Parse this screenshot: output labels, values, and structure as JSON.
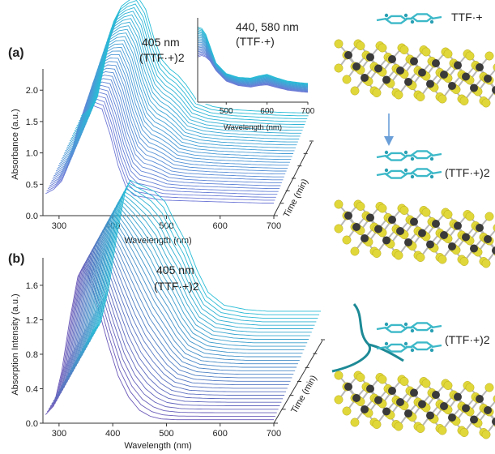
{
  "figure": {
    "panel_a_label": "(a)",
    "panel_b_label": "(b)",
    "schematic": {
      "top_label": "TTF·+",
      "middle_label": "(TTF·+)2",
      "bottom_label": "(TTF·+)2",
      "colors": {
        "ttf": "#3cb8c8",
        "sulfur": "#e0d83a",
        "metal": "#3a3a3a",
        "bond": "#b8b8b8",
        "arrow": "#6a9fd8",
        "polymer": "#1d8a96"
      }
    }
  },
  "chart_data": [
    {
      "id": "a",
      "type": "line",
      "annotation_1": "405 nm",
      "annotation_2": "(TTF·+)2",
      "xlabel": "Wavelength (nm)",
      "ylabel": "Absorbance (a.u.)",
      "zlabel": "Time (min)",
      "xlim": [
        270,
        700
      ],
      "ylim": [
        0,
        2.3
      ],
      "x_ticks": [
        "300",
        "400",
        "500",
        "600",
        "700"
      ],
      "y_ticks": [
        "0.0",
        "0.5",
        "1.0",
        "1.5",
        "2.0"
      ],
      "series_count": 32,
      "first_spectrum": {
        "x": [
          275,
          290,
          305,
          320,
          335,
          350,
          365,
          380,
          395,
          410,
          425,
          440,
          455,
          470,
          490,
          520,
          560,
          600,
          640,
          680,
          700
        ],
        "y": [
          0.35,
          0.42,
          0.55,
          0.9,
          1.4,
          1.7,
          1.75,
          1.7,
          1.3,
          0.8,
          0.45,
          0.32,
          0.3,
          0.28,
          0.25,
          0.24,
          0.23,
          0.22,
          0.21,
          0.2,
          0.2
        ]
      },
      "last_spectrum": {
        "x": [
          275,
          290,
          305,
          320,
          335,
          350,
          365,
          380,
          395,
          410,
          425,
          440,
          455,
          470,
          490,
          520,
          560,
          600,
          640,
          680,
          700
        ],
        "y": [
          0.4,
          0.5,
          0.7,
          1.3,
          1.9,
          2.15,
          2.25,
          2.3,
          2.1,
          1.65,
          1.3,
          1.15,
          1.05,
          0.9,
          0.65,
          0.55,
          0.5,
          0.48,
          0.46,
          0.45,
          0.45
        ]
      },
      "colors": {
        "start": "#6f78d6",
        "end": "#27bcd6"
      },
      "inset": {
        "annotation_1": "440, 580 nm",
        "annotation_2": "(TTF·+)",
        "xlabel": "Wavelength (nm)",
        "xlim": [
          430,
          700
        ],
        "x_ticks": [
          "500",
          "600",
          "700"
        ],
        "series_count": 24,
        "first_spectrum": {
          "x": [
            430,
            440,
            450,
            460,
            475,
            500,
            530,
            560,
            580,
            600,
            620,
            650,
            680,
            700
          ],
          "y": [
            0.6,
            0.62,
            0.6,
            0.55,
            0.42,
            0.28,
            0.22,
            0.2,
            0.22,
            0.23,
            0.2,
            0.16,
            0.14,
            0.13
          ]
        },
        "last_spectrum": {
          "x": [
            430,
            440,
            450,
            460,
            475,
            500,
            530,
            560,
            580,
            600,
            620,
            650,
            680,
            700
          ],
          "y": [
            1.0,
            0.98,
            0.9,
            0.75,
            0.52,
            0.38,
            0.33,
            0.32,
            0.35,
            0.37,
            0.33,
            0.28,
            0.26,
            0.25
          ]
        }
      }
    },
    {
      "id": "b",
      "type": "line",
      "annotation_1": "405 nm",
      "annotation_2": "(TTF·+)2",
      "xlabel": "Wavelength (nm)",
      "ylabel": "Absorption Intensity (a.u.)",
      "zlabel": "Time (min)",
      "xlim": [
        270,
        700
      ],
      "ylim": [
        0,
        1.9
      ],
      "x_ticks": [
        "300",
        "400",
        "500",
        "600",
        "700"
      ],
      "y_ticks": [
        "0.0",
        "0.4",
        "0.8",
        "1.2",
        "1.6"
      ],
      "series_count": 32,
      "first_spectrum": {
        "x": [
          275,
          290,
          305,
          320,
          335,
          345,
          355,
          370,
          390,
          410,
          430,
          450,
          470,
          490,
          520,
          560,
          600,
          650,
          700
        ],
        "y": [
          0.1,
          0.2,
          0.6,
          1.2,
          1.7,
          1.82,
          1.7,
          1.4,
          0.95,
          0.55,
          0.3,
          0.15,
          0.08,
          0.05,
          0.04,
          0.04,
          0.04,
          0.04,
          0.04
        ]
      },
      "last_spectrum": {
        "x": [
          275,
          290,
          305,
          320,
          335,
          345,
          355,
          370,
          390,
          410,
          430,
          450,
          470,
          490,
          520,
          560,
          600,
          650,
          700
        ],
        "y": [
          0.1,
          0.2,
          0.6,
          1.2,
          1.7,
          1.85,
          1.82,
          1.78,
          1.72,
          1.6,
          1.35,
          1.12,
          0.8,
          0.55,
          0.4,
          0.35,
          0.33,
          0.33,
          0.33
        ]
      },
      "colors": {
        "start": "#6b58b8",
        "end": "#27bcd6"
      }
    }
  ]
}
